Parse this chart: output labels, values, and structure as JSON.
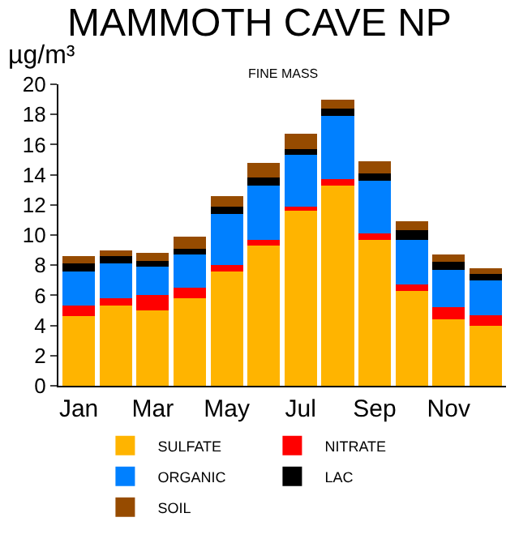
{
  "chart_data": {
    "type": "bar",
    "title": "MAMMOTH CAVE NP",
    "subtitle": "FINE MASS",
    "ylabel": "µg/m³",
    "categories": [
      "Jan",
      null,
      "Mar",
      null,
      "May",
      null,
      "Jul",
      null,
      "Sep",
      null,
      "Nov",
      null
    ],
    "stacked": true,
    "ylim": [
      0,
      20
    ],
    "yticks": [
      0,
      2,
      4,
      6,
      8,
      10,
      12,
      14,
      16,
      18,
      20
    ],
    "legend": "bottom",
    "series": [
      {
        "name": "SULFATE",
        "color": "#ffb400",
        "values": [
          4.6,
          5.3,
          5.0,
          5.8,
          7.6,
          9.3,
          11.6,
          13.3,
          9.7,
          6.3,
          4.4,
          4.0
        ]
      },
      {
        "name": "NITRATE",
        "color": "#ff0000",
        "values": [
          0.7,
          0.5,
          1.0,
          0.7,
          0.4,
          0.4,
          0.3,
          0.4,
          0.4,
          0.4,
          0.8,
          0.7
        ]
      },
      {
        "name": "ORGANIC",
        "color": "#0080ff",
        "values": [
          2.3,
          2.3,
          1.9,
          2.2,
          3.4,
          3.6,
          3.4,
          4.2,
          3.5,
          3.0,
          2.5,
          2.3
        ]
      },
      {
        "name": "LAC",
        "color": "#000000",
        "values": [
          0.5,
          0.5,
          0.4,
          0.4,
          0.5,
          0.5,
          0.4,
          0.5,
          0.5,
          0.6,
          0.5,
          0.4
        ]
      },
      {
        "name": "SOIL",
        "color": "#964b00",
        "values": [
          0.5,
          0.4,
          0.5,
          0.8,
          0.7,
          1.0,
          1.0,
          0.6,
          0.8,
          0.6,
          0.5,
          0.4
        ]
      }
    ]
  }
}
